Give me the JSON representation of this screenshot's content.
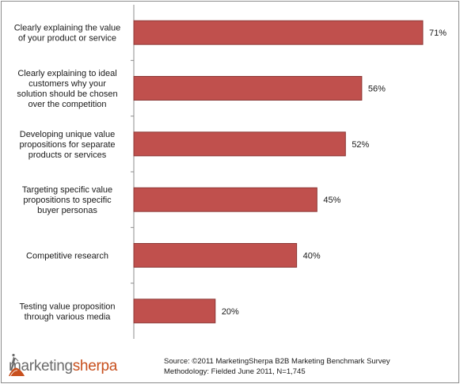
{
  "chart_data": {
    "type": "bar",
    "orientation": "horizontal",
    "categories": [
      [
        "Clearly explaining the value",
        "of your product or service"
      ],
      [
        "Clearly explaining to ideal",
        "customers why your",
        "solution should be chosen",
        "over the competition"
      ],
      [
        "Developing unique value",
        "propositions for separate",
        "products or services"
      ],
      [
        "Targeting specific value",
        "propositions to specific",
        "buyer personas"
      ],
      [
        "Competitive research"
      ],
      [
        "Testing value proposition",
        "through various media"
      ]
    ],
    "values": [
      71,
      56,
      52,
      45,
      40,
      20
    ],
    "value_labels": [
      "71%",
      "56%",
      "52%",
      "45%",
      "40%",
      "20%"
    ],
    "xlim": [
      0,
      75
    ],
    "grid": false,
    "legend": "none",
    "bar_color": "#c0504d",
    "bar_edge_color": "#8c3836"
  },
  "footer": {
    "logo_part1": "marketing",
    "logo_part2": "sherpa",
    "source_line": "Source: ©2011 MarketingSherpa B2B Marketing Benchmark Survey",
    "methodology_line": "Methodology: Fielded June 2011, N=1,745"
  }
}
